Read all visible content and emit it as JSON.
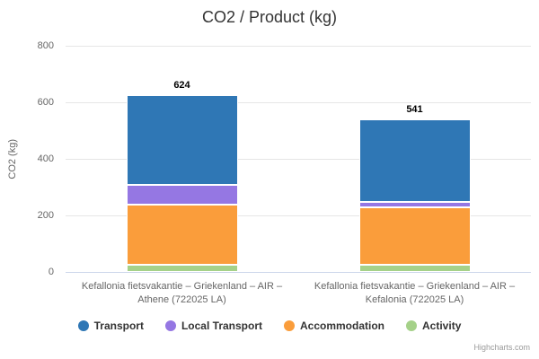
{
  "chart_data": {
    "type": "bar",
    "stacking": "normal",
    "title": "CO2  /  Product (kg)",
    "ylabel": "CO2 (kg)",
    "xlabel": "",
    "ylim": [
      0,
      800
    ],
    "yticks": [
      0,
      200,
      400,
      600,
      800
    ],
    "grid": true,
    "legend_position": "bottom",
    "categories": [
      {
        "label": "Kefallonia fietsvakantie – Griekenland – AIR – Athene (722025 LA)",
        "lines": [
          "Kefallonia fietsvakantie – Griekenland – AIR –",
          "Athene (722025 LA)"
        ]
      },
      {
        "label": "Kefallonia fietsvakantie – Griekenland – AIR – Kefalonia (722025 LA)",
        "lines": [
          "Kefallonia fietsvakantie – Griekenland – AIR –",
          "Kefalonia (722025 LA)"
        ]
      }
    ],
    "totals": [
      624,
      541
    ],
    "series": [
      {
        "name": "Transport",
        "color": "#2f77b5",
        "values": [
          316,
          293
        ]
      },
      {
        "name": "Local Transport",
        "color": "#9577e3",
        "values": [
          71,
          18
        ]
      },
      {
        "name": "Accommodation",
        "color": "#fa9d3b",
        "values": [
          211,
          204
        ]
      },
      {
        "name": "Activity",
        "color": "#a5d189",
        "values": [
          26,
          26
        ]
      }
    ]
  },
  "credit": "Highcharts.com"
}
